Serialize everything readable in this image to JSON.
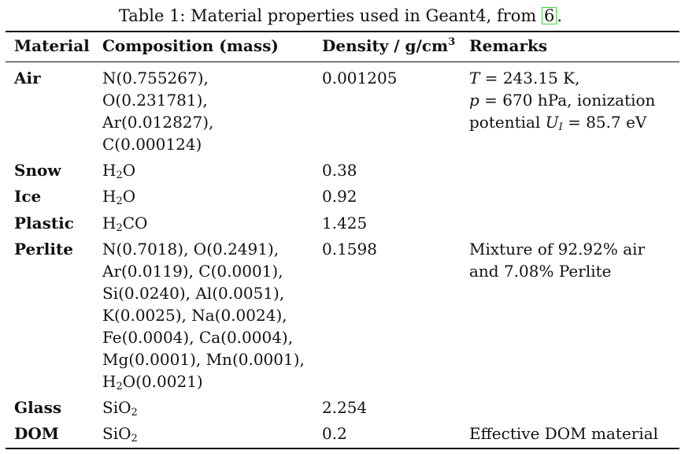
{
  "caption": {
    "text": "Table 1: Material properties used in Geant4, from ",
    "ref": "6",
    "end": "."
  },
  "headers": {
    "material": "Material",
    "composition": "Composition (mass)",
    "density": "Density / g/cm",
    "density_exp": "3",
    "remarks": "Remarks"
  },
  "rows": [
    {
      "material": "Air",
      "composition": [
        "N(0.755267),",
        "O(0.231781),",
        "Ar(0.012827),",
        "C(0.000124)"
      ],
      "density": "0.001205",
      "remarks": {
        "T_var": "T",
        "T_val": " = 243.15 K,",
        "p_var": "p",
        "p_val": " = 670 hPa, ionization",
        "u_prefix": "potential ",
        "u_var": "U",
        "u_sub": "I",
        "u_val": " = 85.7 eV"
      }
    },
    {
      "material": "Snow",
      "formula": {
        "a": "H",
        "sub": "2",
        "b": "O"
      },
      "density": "0.38",
      "remarks": ""
    },
    {
      "material": "Ice",
      "formula": {
        "a": "H",
        "sub": "2",
        "b": "O"
      },
      "density": "0.92",
      "remarks": ""
    },
    {
      "material": "Plastic",
      "formula": {
        "a": "H",
        "sub": "2",
        "b": "CO"
      },
      "density": "1.425",
      "remarks": ""
    },
    {
      "material": "Perlite",
      "composition": [
        "N(0.7018), O(0.2491),",
        "Ar(0.0119), C(0.0001),",
        "Si(0.0240), Al(0.0051),",
        "K(0.0025), Na(0.0024),",
        "Fe(0.0004), Ca(0.0004),",
        "Mg(0.0001), Mn(0.0001),"
      ],
      "last_formula": {
        "a": "H",
        "sub": "2",
        "b": "O(0.0021)"
      },
      "density": "0.1598",
      "remarks": [
        "Mixture of 92.92% air",
        "and 7.08% Perlite"
      ]
    },
    {
      "material": "Glass",
      "formula": {
        "a": "SiO",
        "sub": "2",
        "b": ""
      },
      "density": "2.254",
      "remarks": ""
    },
    {
      "material": "DOM",
      "formula": {
        "a": "SiO",
        "sub": "2",
        "b": ""
      },
      "density": "0.2",
      "remarks": "Effective DOM material"
    }
  ]
}
